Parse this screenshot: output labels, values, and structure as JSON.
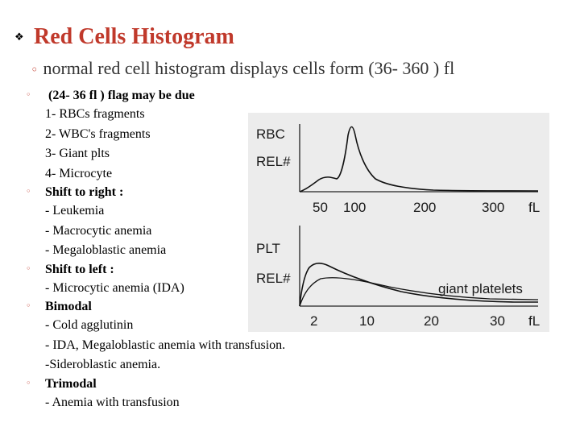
{
  "title": "Red Cells Histogram",
  "subtitle": "normal red cell histogram displays cells form (36- 360 ) fl",
  "sections": [
    {
      "heading": "(24- 36 fl ) flag may be due",
      "lines": [
        "1- RBCs fragments",
        "2- WBC's fragments",
        "3- Giant plts",
        "4- Microcyte"
      ]
    },
    {
      "heading": "Shift to right :",
      "lines": [
        "- Leukemia",
        "- Macrocytic anemia",
        "- Megaloblastic anemia"
      ]
    },
    {
      "heading": "Shift to left :",
      "lines": [
        "- Microcytic anemia (IDA)"
      ]
    },
    {
      "heading": "Bimodal",
      "lines": [
        "- Cold agglutinin",
        "- IDA, Megaloblastic anemia with transfusion.",
        "-Sideroblastic anemia."
      ]
    },
    {
      "heading": "Trimodal",
      "lines": [
        "- Anemia with transfusion"
      ]
    }
  ],
  "figure": {
    "rbc": {
      "label1": "RBC",
      "label2": "REL#",
      "ticks": [
        "50",
        "100",
        "200",
        "300",
        "fL"
      ]
    },
    "plt": {
      "label1": "PLT",
      "label2": "REL#",
      "annotation": "giant platelets",
      "ticks": [
        "2",
        "10",
        "20",
        "30",
        "fL"
      ]
    }
  },
  "colors": {
    "title": "#c0392b",
    "bullet": "#c0392b",
    "figure_bg": "#ececec"
  }
}
